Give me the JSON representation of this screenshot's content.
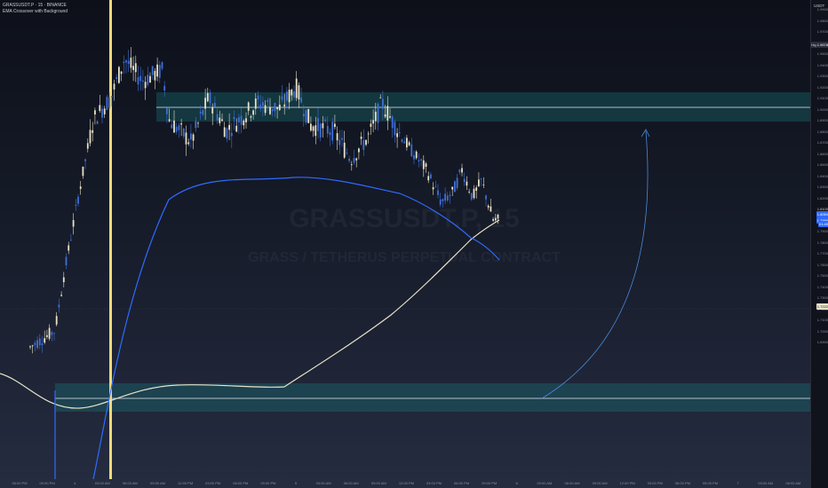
{
  "header": {
    "symbol_line": "GRASSUSDT.P · 15 · BINANCE",
    "indicator_line": "EMA Crossover with Background"
  },
  "currency": "USDT",
  "watermark": {
    "symbol": "GRASSUSDT.P, 15",
    "name": "GRASS / TETHERUS PERPETUAL CONTRACT"
  },
  "price_axis": {
    "labels": [
      "1.9900",
      "1.9800",
      "1.9700",
      "1.9600",
      "1.9500",
      "1.9400",
      "1.9300",
      "1.9200",
      "1.9100",
      "1.9000",
      "1.8900",
      "1.8800",
      "1.8700",
      "1.8600",
      "1.8500",
      "1.8400",
      "1.8300",
      "1.8200",
      "1.8100",
      "1.8000",
      "1.7900",
      "1.7800",
      "1.7700",
      "1.7600",
      "1.7500",
      "1.7400",
      "1.7300",
      "1.7200",
      "1.7100",
      "1.7000",
      "1.6900"
    ],
    "tags": {
      "high_label": "High",
      "high_value": "1.9578",
      "cross_value": "1.8100",
      "ema_value": "1.8054",
      "last_value": "1.7999",
      "last_time": "01:49",
      "low_value": "1.7222"
    }
  },
  "time_axis": {
    "labels": [
      "06:00 PM",
      "09:00 PM",
      "4",
      "03:00 AM",
      "06:00 AM",
      "09:00 AM",
      "12:00 PM",
      "03:00 PM",
      "06:00 PM",
      "09:00 PM",
      "5",
      "03:00 AM",
      "06:00 AM",
      "09:00 AM",
      "12:00 PM",
      "03:00 PM",
      "06:00 PM",
      "09:00 PM",
      "6",
      "03:00 AM",
      "06:00 AM",
      "09:00 AM",
      "12:00 PM",
      "03:00 PM",
      "06:00 PM",
      "09:00 PM",
      "7",
      "03:00 AM",
      "06:00 AM"
    ]
  },
  "colors": {
    "up": "#e8e1c6",
    "down": "#3e6fd6",
    "ema_fast": "#2f6bff",
    "ema_slow": "#e9e3c9",
    "zone": "#1a7f83",
    "vline": "#f3d97a",
    "arrow": "#4a8ad8"
  }
}
